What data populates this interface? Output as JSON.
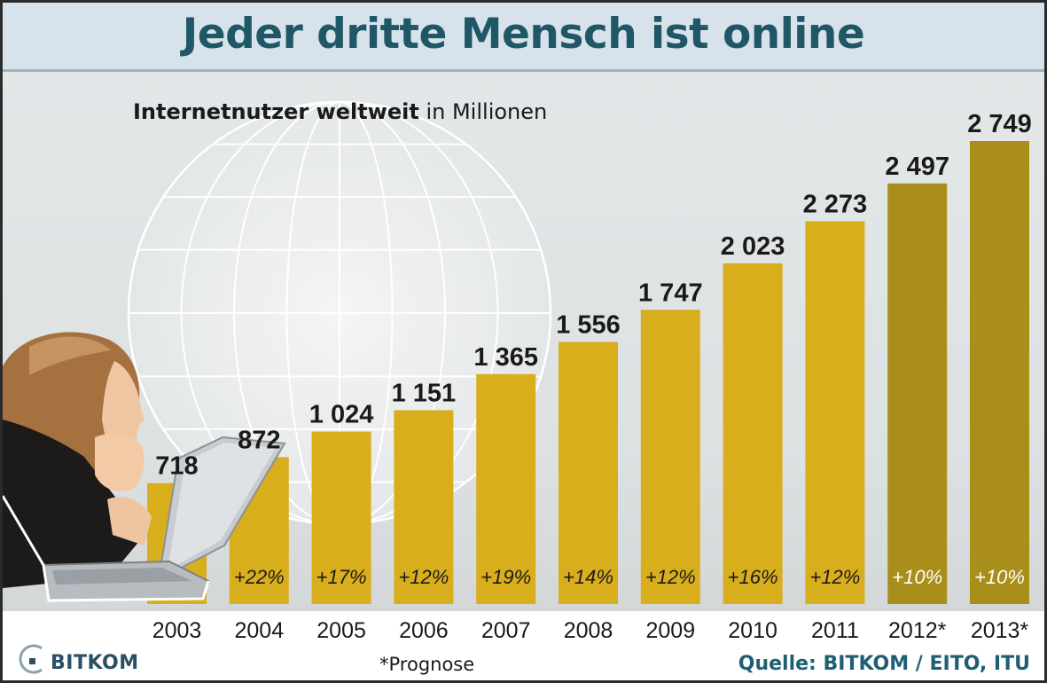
{
  "header": {
    "title": "Jeder dritte Mensch ist online"
  },
  "subtitle": {
    "bold": "Internetnutzer weltweit",
    "rest": "in Millionen"
  },
  "footer": {
    "note": "*Prognose",
    "source": "Quelle: BITKOM / EITO, ITU",
    "logo_text": "BITKOM"
  },
  "colors": {
    "bar": "#d9ae1d",
    "bar_forecast": "#aa8e1c",
    "accent": "#1f5767"
  },
  "chart_data": {
    "type": "bar",
    "title": "Jeder dritte Mensch ist online",
    "subtitle": "Internetnutzer weltweit in Millionen",
    "categories": [
      "2003",
      "2004",
      "2005",
      "2006",
      "2007",
      "2008",
      "2009",
      "2010",
      "2011",
      "2012*",
      "2013*"
    ],
    "values": [
      718,
      872,
      1024,
      1151,
      1365,
      1556,
      1747,
      2023,
      2273,
      2497,
      2749
    ],
    "value_labels": [
      "718",
      "872",
      "1 024",
      "1 151",
      "1 365",
      "1 556",
      "1 747",
      "2 023",
      "2 273",
      "2 497",
      "2 749"
    ],
    "growth_labels": [
      "",
      "+22%",
      "+17%",
      "+12%",
      "+19%",
      "+14%",
      "+12%",
      "+16%",
      "+12%",
      "+10%",
      "+10%"
    ],
    "forecast": [
      false,
      false,
      false,
      false,
      false,
      false,
      false,
      false,
      false,
      true,
      true
    ],
    "ylim": [
      0,
      2749
    ],
    "xlabel": "",
    "ylabel": "",
    "grid": false,
    "legend": "none"
  }
}
